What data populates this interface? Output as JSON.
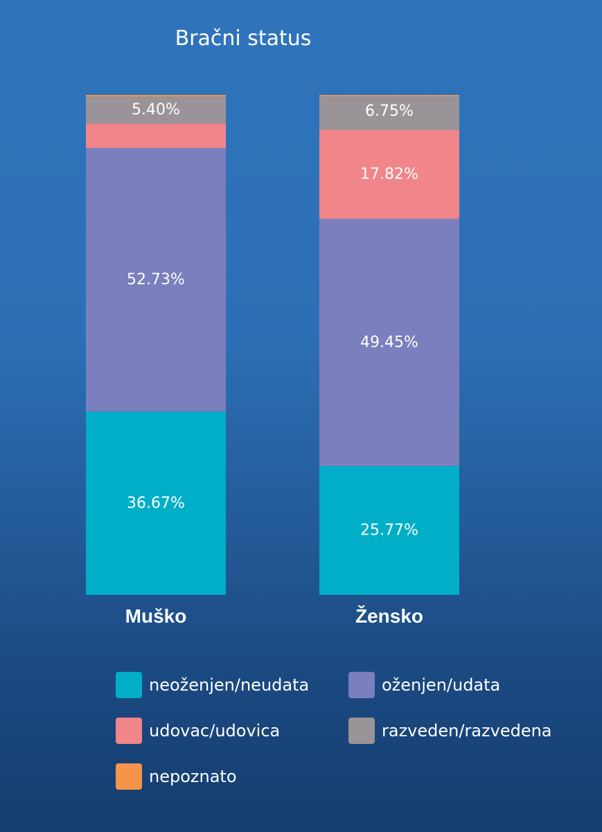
{
  "chart_data": {
    "type": "bar",
    "stacked": true,
    "percent": true,
    "title": "Bračni status",
    "categories": [
      "Muško",
      "Žensko"
    ],
    "series": [
      {
        "name": "neoženjen/neudata",
        "color": "#00aec8",
        "values": [
          36.67,
          25.77
        ],
        "labels": [
          "36.67%",
          "25.77%"
        ]
      },
      {
        "name": "oženjen/udata",
        "color": "#7b7fbd",
        "values": [
          52.73,
          49.45
        ],
        "labels": [
          "52.73%",
          "49.45%"
        ]
      },
      {
        "name": "udovac/udovica",
        "color": "#f0868a",
        "values": [
          4.9,
          17.82
        ],
        "labels": [
          "",
          "17.82%"
        ]
      },
      {
        "name": "razveden/razvedena",
        "color": "#9a9397",
        "values": [
          5.4,
          6.75
        ],
        "labels": [
          "5.40%",
          "6.75%"
        ]
      },
      {
        "name": "nepoznato",
        "color": "#f5944a",
        "values": [
          0.3,
          0.21
        ],
        "labels": [
          "",
          ""
        ]
      }
    ],
    "ylim": [
      0,
      100
    ],
    "legend_position": "bottom"
  }
}
